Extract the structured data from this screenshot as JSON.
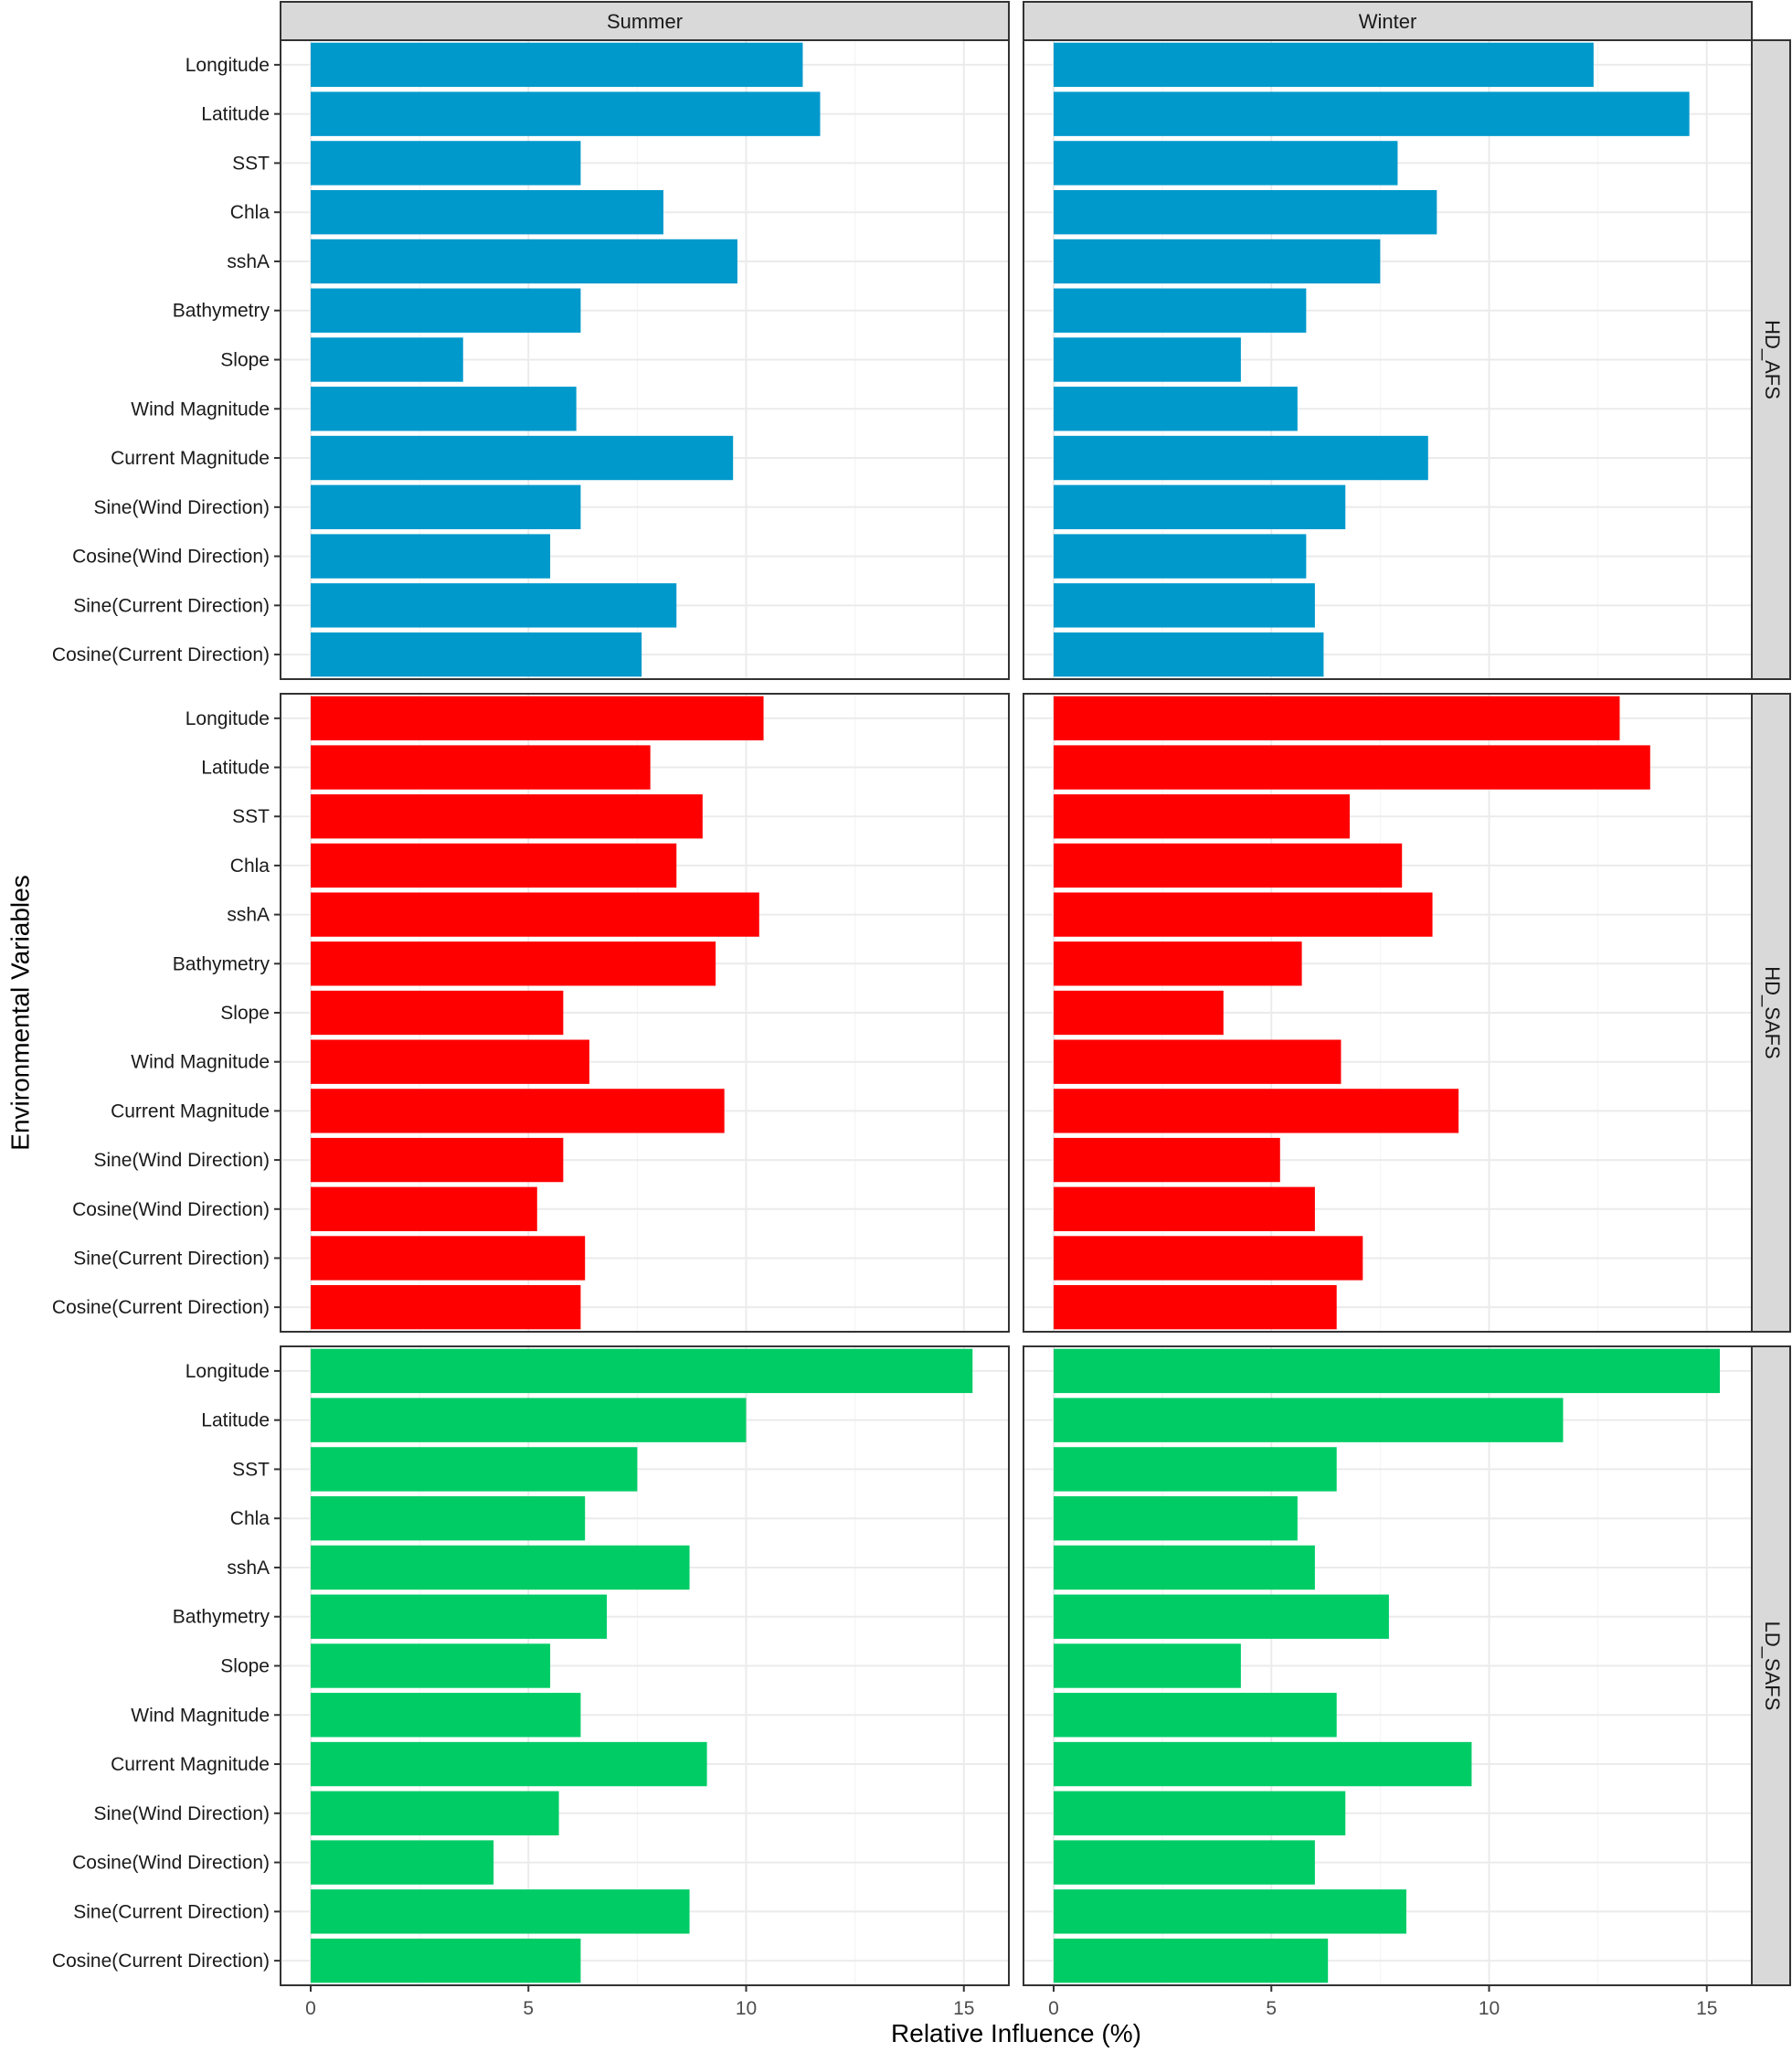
{
  "chart_data": {
    "type": "bar",
    "orientation": "horizontal",
    "xlabel": "Relative Influence (%)",
    "ylabel": "Environmental Variables",
    "xlim": [
      0,
      16
    ],
    "xticks": [
      0,
      5,
      10,
      15
    ],
    "grid": true,
    "columns": [
      "Summer",
      "Winter"
    ],
    "categories": [
      "Longitude",
      "Latitude",
      "SST",
      "Chla",
      "sshA",
      "Bathymetry",
      "Slope",
      "Wind Magnitude",
      "Current Magnitude",
      "Sine(Wind Direction)",
      "Cosine(Wind Direction)",
      "Sine(Current Direction)",
      "Cosine(Current Direction)"
    ],
    "rows": [
      {
        "name": "HD_AFS",
        "color": "#0099cc",
        "series": {
          "Summer": [
            11.3,
            11.7,
            6.2,
            8.1,
            9.8,
            6.2,
            3.5,
            6.1,
            9.7,
            6.2,
            5.5,
            8.4,
            7.6
          ],
          "Winter": [
            12.4,
            14.6,
            7.9,
            8.8,
            7.5,
            5.8,
            4.3,
            5.6,
            8.6,
            6.7,
            5.8,
            6.0,
            6.2
          ]
        }
      },
      {
        "name": "HD_SAFS",
        "color": "#ff0000",
        "series": {
          "Summer": [
            10.4,
            7.8,
            9.0,
            8.4,
            10.3,
            9.3,
            5.8,
            6.4,
            9.5,
            5.8,
            5.2,
            6.3,
            6.2
          ],
          "Winter": [
            13.0,
            13.7,
            6.8,
            8.0,
            8.7,
            5.7,
            3.9,
            6.6,
            9.3,
            5.2,
            6.0,
            7.1,
            6.5
          ]
        }
      },
      {
        "name": "LD_SAFS",
        "color": "#00cc66",
        "series": {
          "Summer": [
            15.2,
            10.0,
            7.5,
            6.3,
            8.7,
            6.8,
            5.5,
            6.2,
            9.1,
            5.7,
            4.2,
            8.7,
            6.2
          ],
          "Winter": [
            15.3,
            11.7,
            6.5,
            5.6,
            6.0,
            7.7,
            4.3,
            6.5,
            9.6,
            6.7,
            6.0,
            8.1,
            6.3
          ]
        }
      }
    ]
  }
}
